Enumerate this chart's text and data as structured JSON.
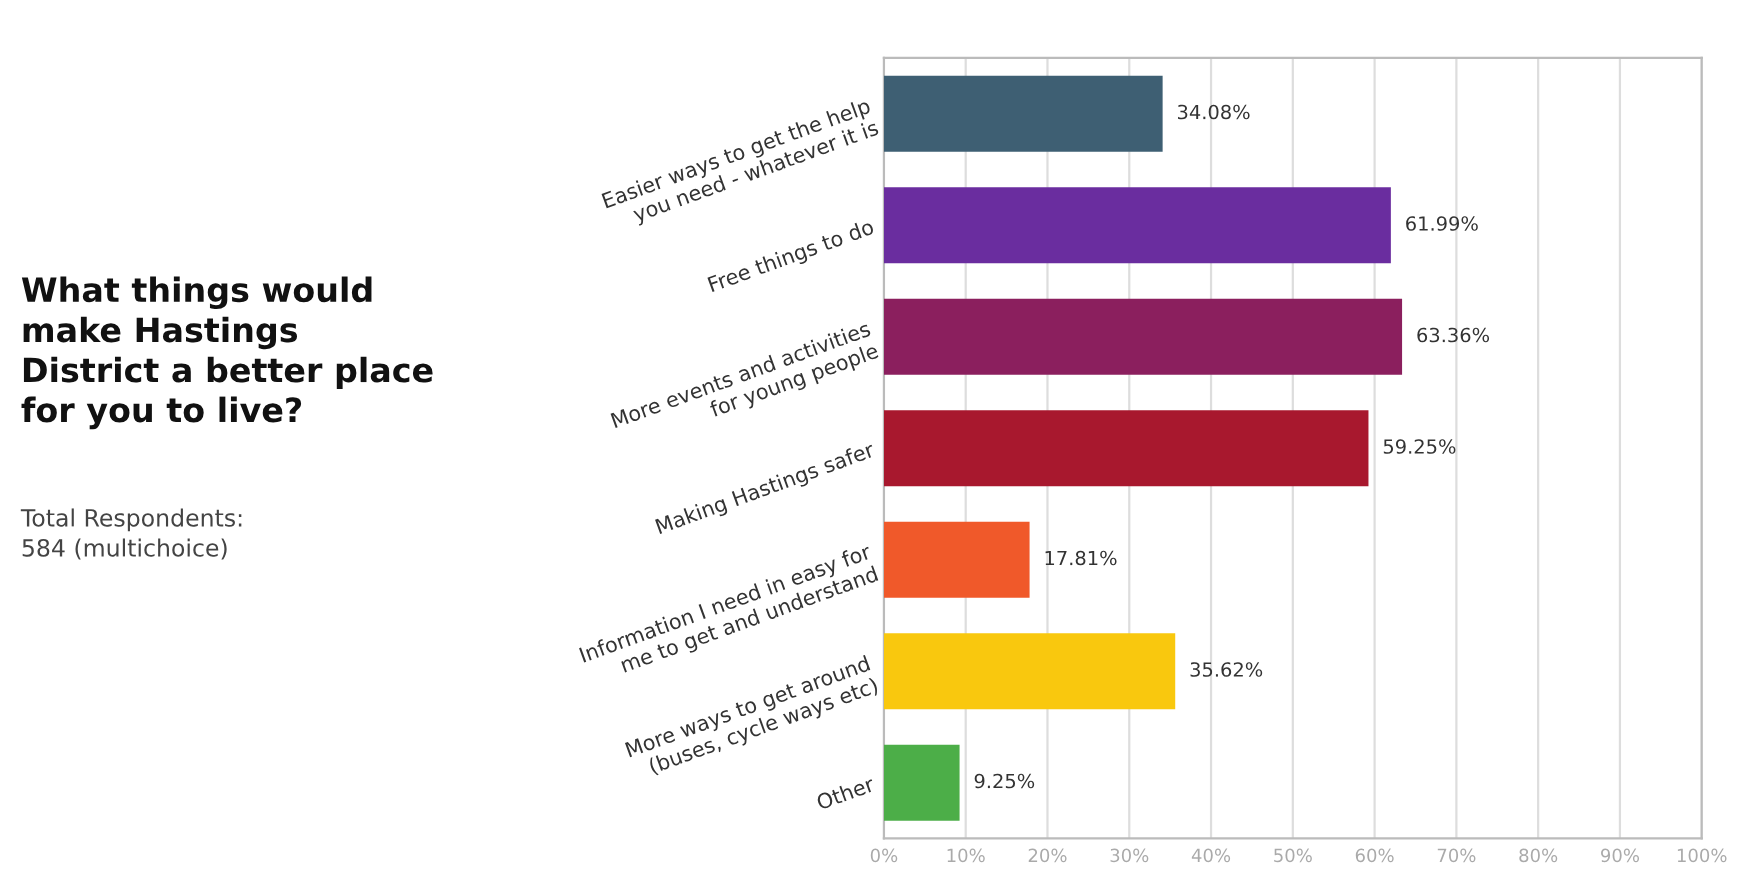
{
  "chart_data": {
    "type": "bar",
    "orientation": "horizontal",
    "title": "What things would\nmake Hastings\nDistrict a better place\nfor you to live?",
    "subtitle": "Total Respondents:\n584 (multichoice)",
    "categories": [
      "Easier ways to get the help\nyou need - whatever it is",
      "Free things to do",
      "More events and activities\nfor young people",
      "Making Hastings safer",
      "Information I need in easy for\nme to get and understand",
      "More ways to get around\n(buses, cycle ways etc)",
      "Other"
    ],
    "values": [
      34.08,
      61.99,
      63.36,
      59.25,
      17.81,
      35.62,
      9.25
    ],
    "colors": [
      "#3e5f73",
      "#6a2d9f",
      "#8b1f5e",
      "#a8182e",
      "#f0592a",
      "#f9c80e",
      "#4cae48"
    ],
    "value_labels": [
      "34.08%",
      "61.99%",
      "63.36%",
      "59.25%",
      "17.81%",
      "35.62%",
      "9.25%"
    ],
    "xlim": [
      0,
      100
    ],
    "xticks": [
      {
        "value": 0,
        "label": "0%"
      },
      {
        "value": 10,
        "label": "10%"
      },
      {
        "value": 20,
        "label": "20%"
      },
      {
        "value": 30,
        "label": "30%"
      },
      {
        "value": 40,
        "label": "40%"
      },
      {
        "value": 50,
        "label": "50%"
      },
      {
        "value": 60,
        "label": "60%"
      },
      {
        "value": 70,
        "label": "70%"
      },
      {
        "value": 80,
        "label": "80%"
      },
      {
        "value": 90,
        "label": "90%"
      },
      {
        "value": 100,
        "label": "100%"
      }
    ],
    "grid": "x",
    "legend": false
  }
}
